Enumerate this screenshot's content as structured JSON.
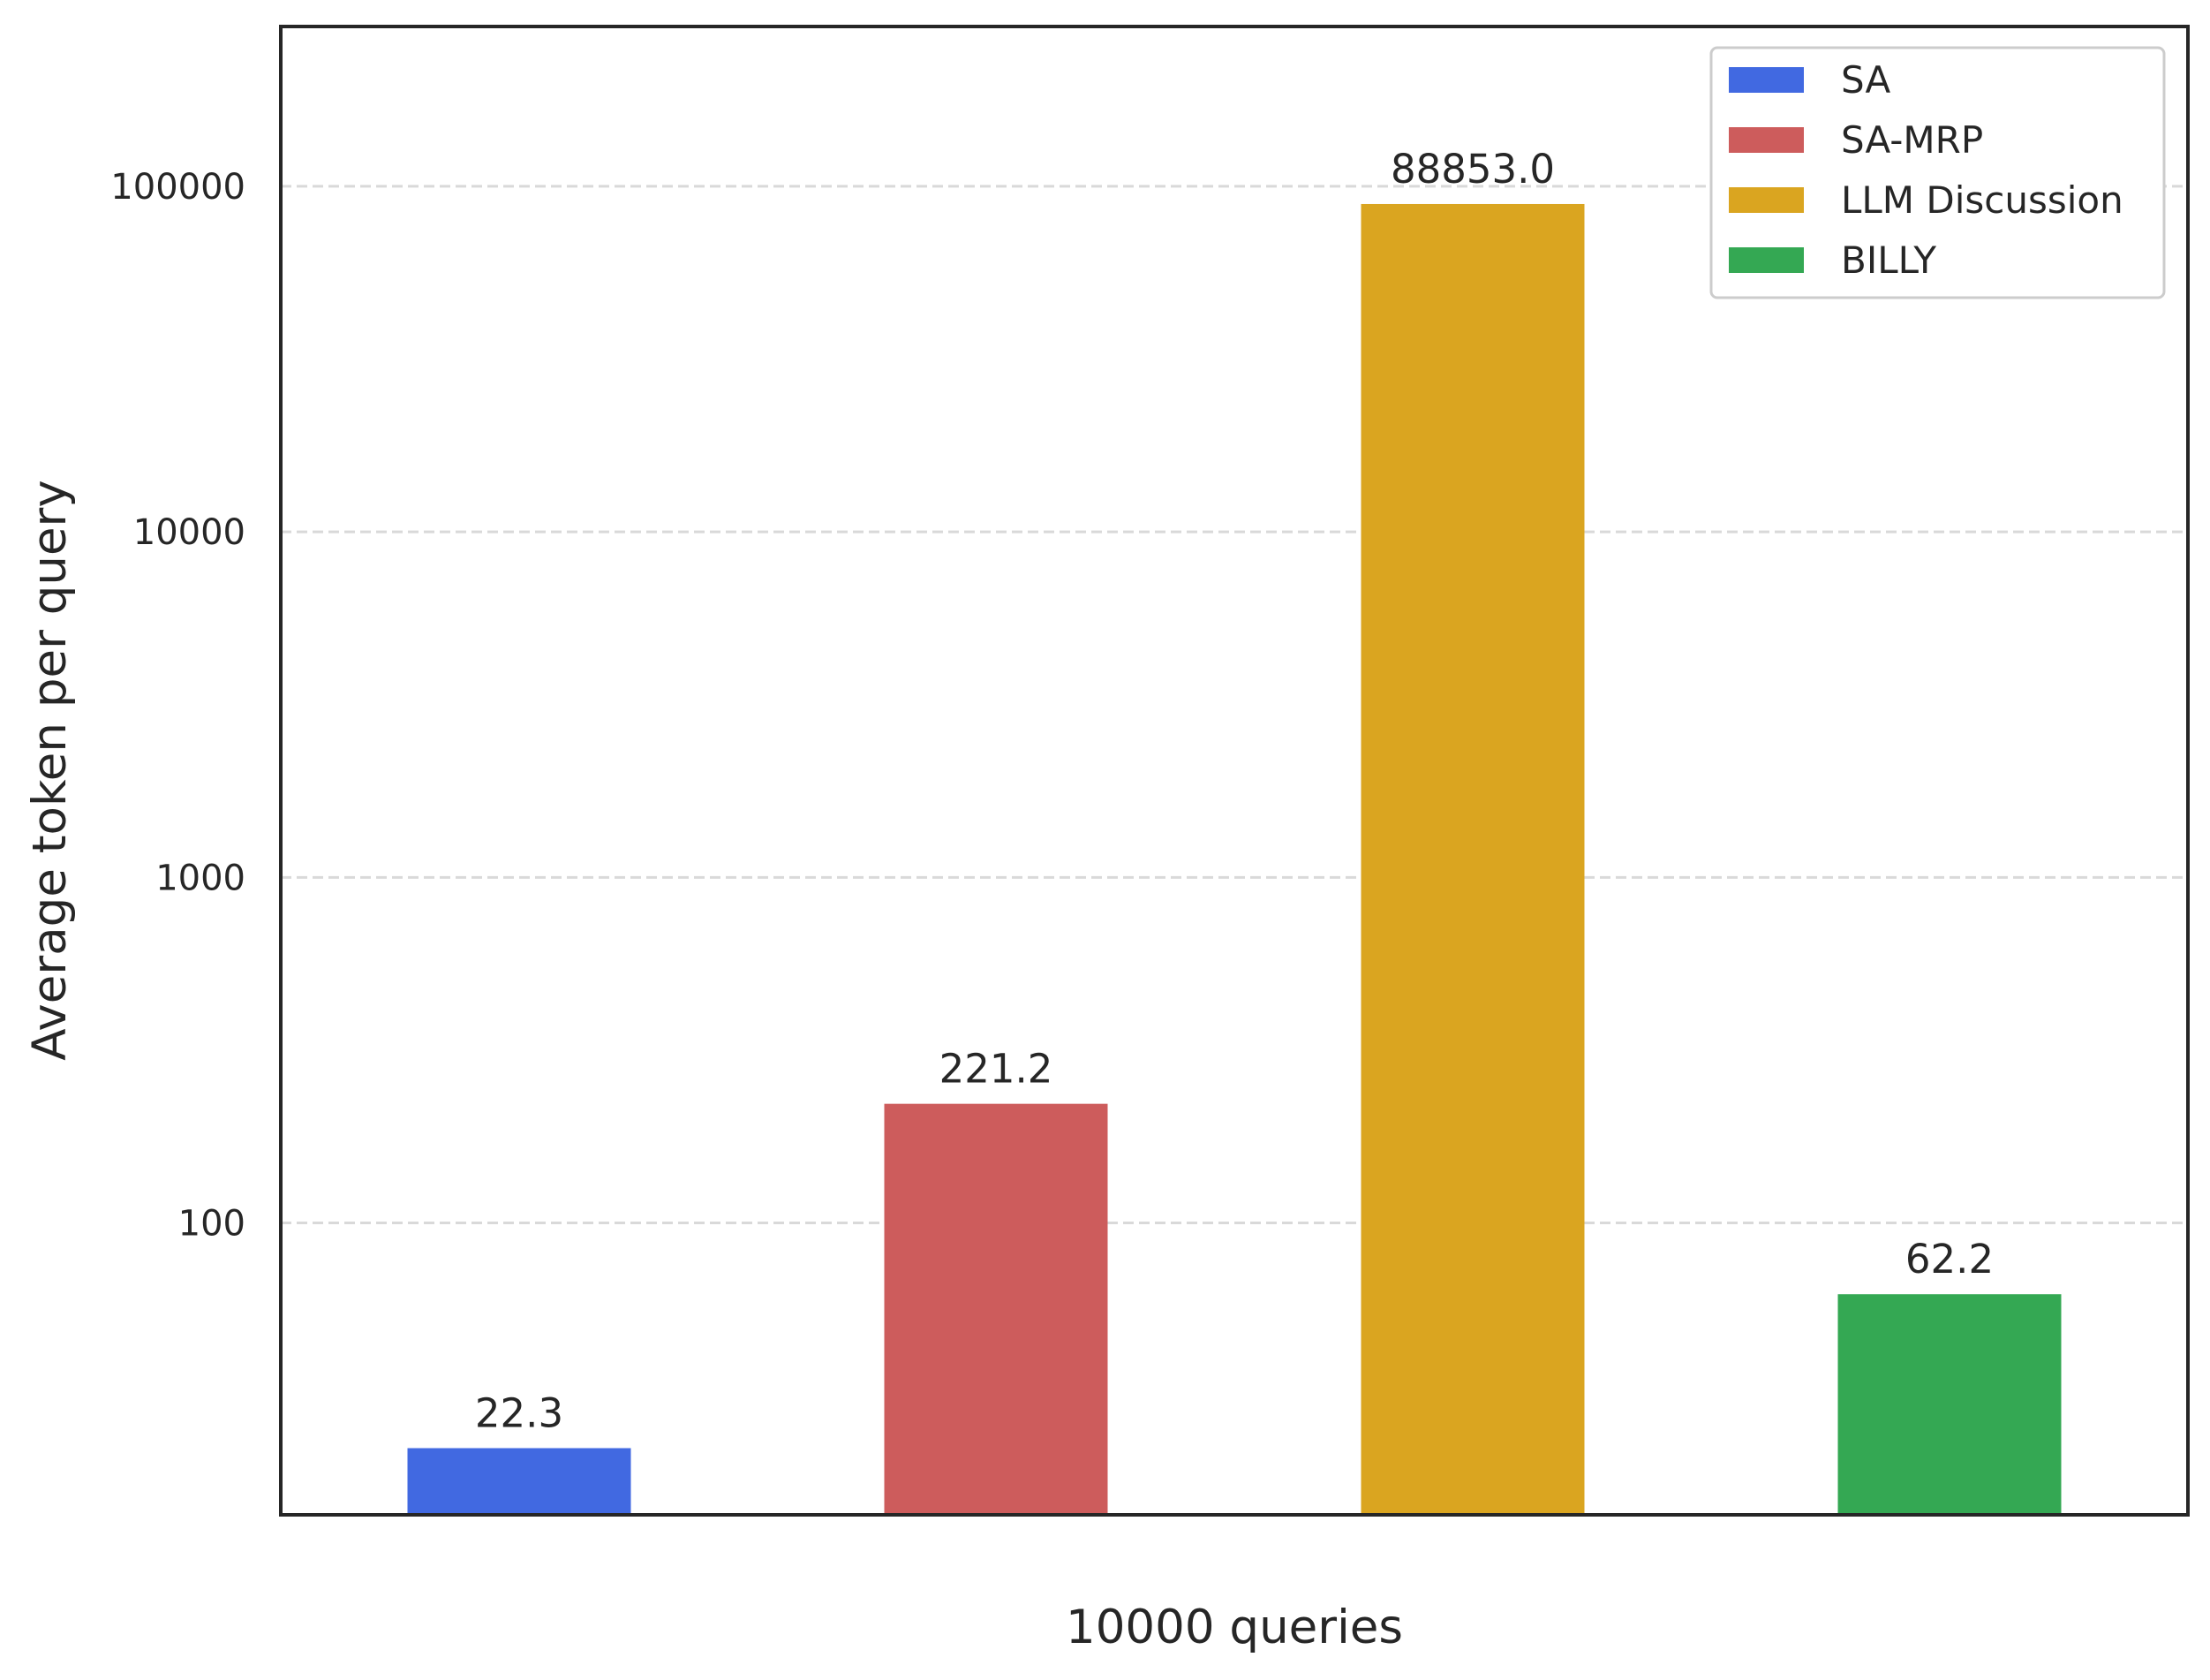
{
  "chart_data": {
    "type": "bar",
    "xlabel": "10000 queries",
    "ylabel": "Average token per query",
    "yscale": "log",
    "ylim": [
      14.3,
      290000
    ],
    "yticks": [
      100,
      1000,
      10000,
      100000
    ],
    "ytick_labels": [
      "100",
      "1000",
      "10000",
      "100000"
    ],
    "grid": "y dashed",
    "legend_position": "top-right",
    "series": [
      {
        "name": "SA",
        "value": 22.3,
        "label": "22.3",
        "color": "#4169E1"
      },
      {
        "name": "SA-MRP",
        "value": 221.2,
        "label": "221.2",
        "color": "#CD5C5C"
      },
      {
        "name": "LLM Discussion",
        "value": 88853.0,
        "label": "88853.0",
        "color": "#DAA520"
      },
      {
        "name": "BILLY",
        "value": 62.2,
        "label": "62.2",
        "color": "#34A853"
      }
    ]
  }
}
